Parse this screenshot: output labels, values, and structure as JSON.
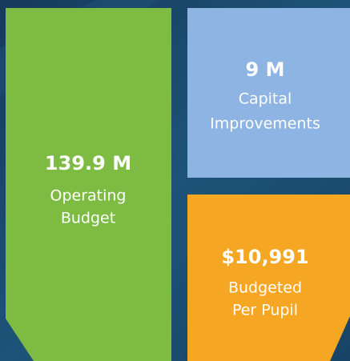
{
  "tiles": [
    {
      "value": "139.9 M",
      "label": [
        "Operating",
        "Budget"
      ]
    },
    {
      "value": "9 M",
      "label": [
        "Capital",
        "Improvements"
      ]
    },
    {
      "value": "$10,991",
      "label": [
        "Budgeted",
        "Per Pupil"
      ]
    }
  ]
}
